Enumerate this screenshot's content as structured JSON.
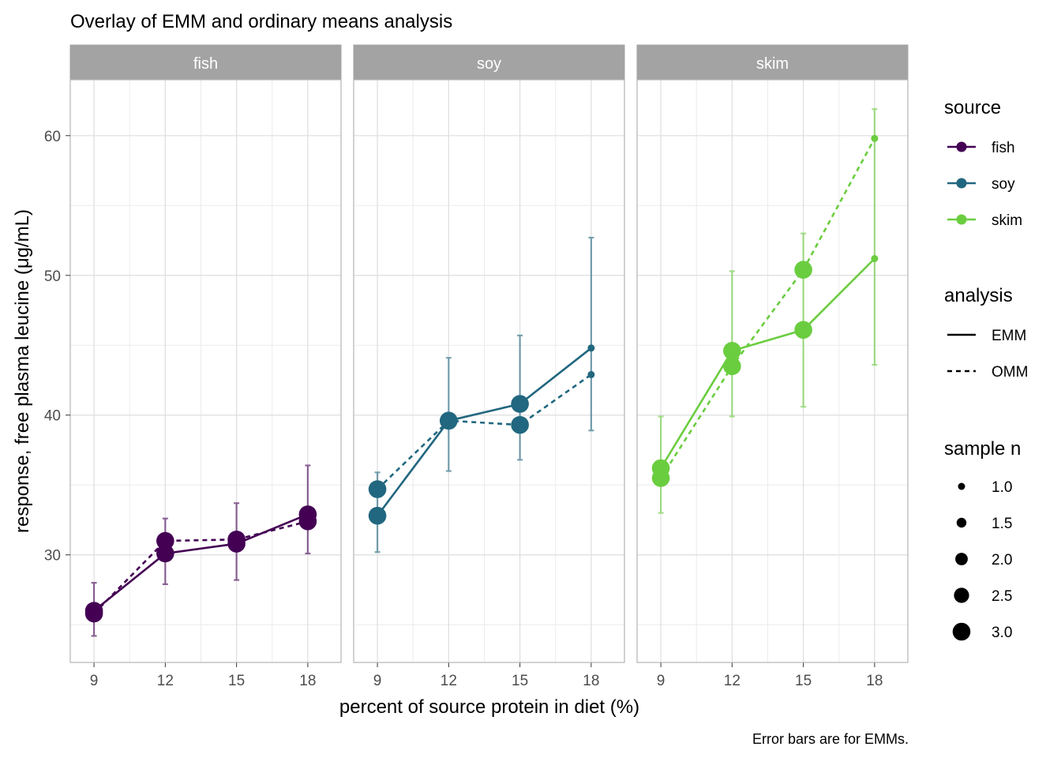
{
  "chart_data": {
    "type": "line",
    "title": "Overlay of EMM and ordinary means analysis",
    "xlabel": "percent of source protein in diet (%)",
    "ylabel": "response, free plasma leucine (μg/mL)",
    "caption": "Error bars are for EMMs.",
    "panels": [
      "fish",
      "soy",
      "skim"
    ],
    "x_ticks": [
      9,
      12,
      15,
      18
    ],
    "xlim": [
      8,
      19.4
    ],
    "y_ticks": [
      30,
      40,
      50,
      60
    ],
    "ylim": [
      22.3,
      64
    ],
    "grid": true,
    "legend_position": "right",
    "legend": {
      "source": {
        "title": "source",
        "items": [
          {
            "label": "fish",
            "color": "#440154"
          },
          {
            "label": "soy",
            "color": "#21677F"
          },
          {
            "label": "skim",
            "color": "#6ACD3F"
          }
        ]
      },
      "analysis": {
        "title": "analysis",
        "items": [
          {
            "label": "EMM",
            "linetype": "solid"
          },
          {
            "label": "OMM",
            "linetype": "dashed"
          }
        ]
      },
      "sample_n": {
        "title": "sample n",
        "items": [
          "1.0",
          "1.5",
          "2.0",
          "2.5",
          "3.0"
        ]
      }
    },
    "series": [
      {
        "panel": "fish",
        "source": "fish",
        "analysis": "EMM",
        "color": "#440154",
        "points": [
          {
            "x": 9,
            "y": 26.0,
            "n": 3
          },
          {
            "x": 12,
            "y": 30.1,
            "n": 3
          },
          {
            "x": 15,
            "y": 30.8,
            "n": 3
          },
          {
            "x": 18,
            "y": 32.9,
            "n": 3
          }
        ],
        "error_bars": [
          [
            24.2,
            28.0
          ],
          [
            27.9,
            32.6
          ],
          [
            28.2,
            33.7
          ],
          [
            30.1,
            36.4
          ]
        ]
      },
      {
        "panel": "fish",
        "source": "fish",
        "analysis": "OMM",
        "color": "#440154",
        "points": [
          {
            "x": 9,
            "y": 25.8,
            "n": 3
          },
          {
            "x": 12,
            "y": 31.0,
            "n": 3
          },
          {
            "x": 15,
            "y": 31.1,
            "n": 3
          },
          {
            "x": 18,
            "y": 32.4,
            "n": 3
          }
        ]
      },
      {
        "panel": "soy",
        "source": "soy",
        "analysis": "EMM",
        "color": "#21677F",
        "points": [
          {
            "x": 9,
            "y": 32.8,
            "n": 3
          },
          {
            "x": 12,
            "y": 39.6,
            "n": 3
          },
          {
            "x": 15,
            "y": 40.8,
            "n": 3
          },
          {
            "x": 18,
            "y": 44.8,
            "n": 1
          }
        ],
        "error_bars": [
          [
            30.2,
            35.9
          ],
          [
            36.0,
            44.1
          ],
          [
            36.8,
            45.7
          ],
          [
            38.9,
            52.7
          ]
        ]
      },
      {
        "panel": "soy",
        "source": "soy",
        "analysis": "OMM",
        "color": "#21677F",
        "points": [
          {
            "x": 9,
            "y": 34.7,
            "n": 3
          },
          {
            "x": 12,
            "y": 39.6,
            "n": 3
          },
          {
            "x": 15,
            "y": 39.3,
            "n": 3
          },
          {
            "x": 18,
            "y": 42.9,
            "n": 1
          }
        ]
      },
      {
        "panel": "skim",
        "source": "skim",
        "analysis": "EMM",
        "color": "#6ACD3F",
        "points": [
          {
            "x": 9,
            "y": 36.2,
            "n": 3
          },
          {
            "x": 12,
            "y": 44.6,
            "n": 3
          },
          {
            "x": 15,
            "y": 46.1,
            "n": 3
          },
          {
            "x": 18,
            "y": 51.2,
            "n": 1
          }
        ],
        "error_bars": [
          [
            33.0,
            39.9
          ],
          [
            39.9,
            50.3
          ],
          [
            40.6,
            53.0
          ],
          [
            43.6,
            61.9
          ]
        ]
      },
      {
        "panel": "skim",
        "source": "skim",
        "analysis": "OMM",
        "color": "#6ACD3F",
        "points": [
          {
            "x": 9,
            "y": 35.5,
            "n": 3
          },
          {
            "x": 12,
            "y": 43.5,
            "n": 3
          },
          {
            "x": 15,
            "y": 50.4,
            "n": 3
          },
          {
            "x": 18,
            "y": 59.8,
            "n": 1
          }
        ]
      }
    ]
  }
}
